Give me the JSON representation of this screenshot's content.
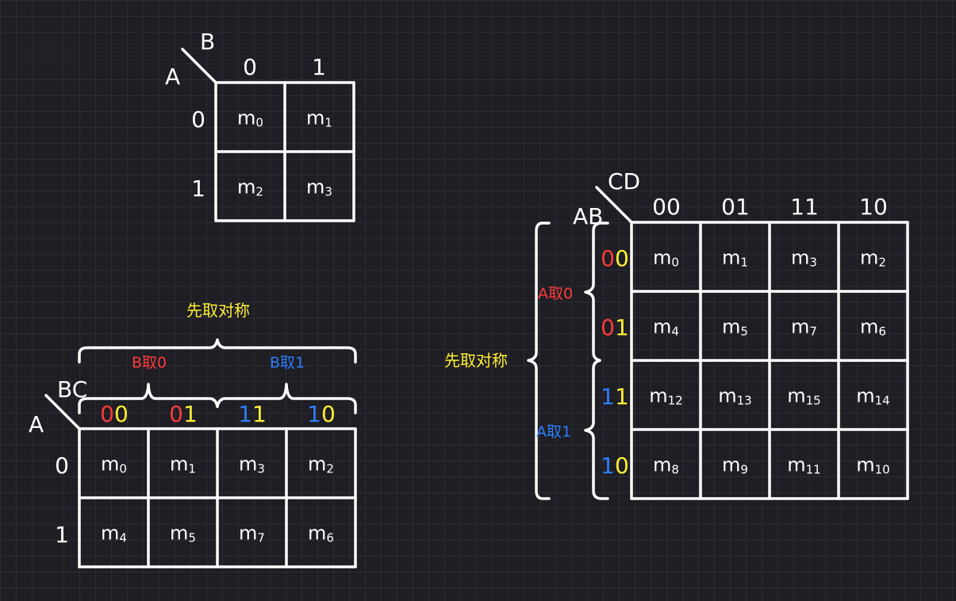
{
  "colors": {
    "background": "#1e1e24",
    "line": "#ffffff",
    "red": "#ff3b3b",
    "yellow": "#ffee33",
    "blue": "#2e7dff"
  },
  "kmap2": {
    "row_var": "A",
    "col_var": "B",
    "col_headers": [
      "0",
      "1"
    ],
    "row_headers": [
      "0",
      "1"
    ],
    "cells": [
      [
        {
          "m": "m",
          "i": "0"
        },
        {
          "m": "m",
          "i": "1"
        }
      ],
      [
        {
          "m": "m",
          "i": "2"
        },
        {
          "m": "m",
          "i": "3"
        }
      ]
    ]
  },
  "kmap3": {
    "row_var": "A",
    "col_var": "BC",
    "top_label": "先取对称",
    "group_left": "B取0",
    "group_right": "B取1",
    "col_headers": [
      {
        "first": "0",
        "first_color": "red",
        "second": "0",
        "second_color": "yellow"
      },
      {
        "first": "0",
        "first_color": "red",
        "second": "1",
        "second_color": "yellow"
      },
      {
        "first": "1",
        "first_color": "blue",
        "second": "1",
        "second_color": "yellow"
      },
      {
        "first": "1",
        "first_color": "blue",
        "second": "0",
        "second_color": "yellow"
      }
    ],
    "row_headers": [
      "0",
      "1"
    ],
    "cells": [
      [
        {
          "m": "m",
          "i": "0"
        },
        {
          "m": "m",
          "i": "1"
        },
        {
          "m": "m",
          "i": "3"
        },
        {
          "m": "m",
          "i": "2"
        }
      ],
      [
        {
          "m": "m",
          "i": "4"
        },
        {
          "m": "m",
          "i": "5"
        },
        {
          "m": "m",
          "i": "7"
        },
        {
          "m": "m",
          "i": "6"
        }
      ]
    ]
  },
  "kmap4": {
    "row_var": "AB",
    "col_var": "CD",
    "side_label": "先取对称",
    "group_top": "A取0",
    "group_bottom": "A取1",
    "col_headers": [
      "00",
      "01",
      "11",
      "10"
    ],
    "row_headers": [
      {
        "first": "0",
        "first_color": "red",
        "second": "0",
        "second_color": "yellow"
      },
      {
        "first": "0",
        "first_color": "red",
        "second": "1",
        "second_color": "yellow"
      },
      {
        "first": "1",
        "first_color": "blue",
        "second": "1",
        "second_color": "yellow"
      },
      {
        "first": "1",
        "first_color": "blue",
        "second": "0",
        "second_color": "yellow"
      }
    ],
    "cells": [
      [
        {
          "m": "m",
          "i": "0"
        },
        {
          "m": "m",
          "i": "1"
        },
        {
          "m": "m",
          "i": "3"
        },
        {
          "m": "m",
          "i": "2"
        }
      ],
      [
        {
          "m": "m",
          "i": "4"
        },
        {
          "m": "m",
          "i": "5"
        },
        {
          "m": "m",
          "i": "7"
        },
        {
          "m": "m",
          "i": "6"
        }
      ],
      [
        {
          "m": "m",
          "i": "12"
        },
        {
          "m": "m",
          "i": "13"
        },
        {
          "m": "m",
          "i": "15"
        },
        {
          "m": "m",
          "i": "14"
        }
      ],
      [
        {
          "m": "m",
          "i": "8"
        },
        {
          "m": "m",
          "i": "9"
        },
        {
          "m": "m",
          "i": "11"
        },
        {
          "m": "m",
          "i": "10"
        }
      ]
    ]
  }
}
